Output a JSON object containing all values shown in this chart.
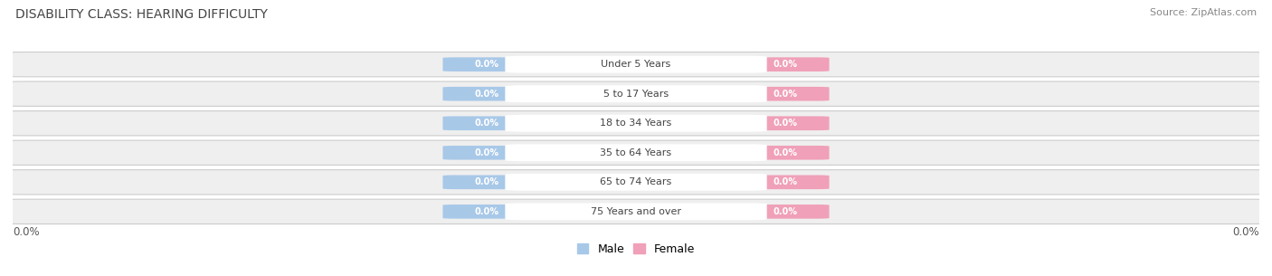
{
  "title": "DISABILITY CLASS: HEARING DIFFICULTY",
  "source": "Source: ZipAtlas.com",
  "categories": [
    "Under 5 Years",
    "5 to 17 Years",
    "18 to 34 Years",
    "35 to 64 Years",
    "65 to 74 Years",
    "75 Years and over"
  ],
  "male_values": [
    0.0,
    0.0,
    0.0,
    0.0,
    0.0,
    0.0
  ],
  "female_values": [
    0.0,
    0.0,
    0.0,
    0.0,
    0.0,
    0.0
  ],
  "male_color": "#a8c8e8",
  "female_color": "#f0a0b8",
  "male_label": "Male",
  "female_label": "Female",
  "row_bg_color": "#efefef",
  "title_fontsize": 10,
  "source_fontsize": 8,
  "axis_label_left": "0.0%",
  "axis_label_right": "0.0%",
  "xlim": [
    -1.0,
    1.0
  ],
  "figsize": [
    14.06,
    3.05
  ],
  "dpi": 100
}
